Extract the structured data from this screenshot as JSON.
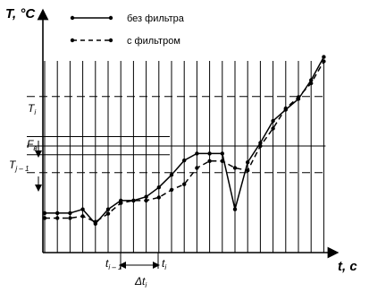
{
  "chart_data": {
    "type": "line",
    "title": "",
    "y_axis_label": "T, °C",
    "x_axis_label": "t, c",
    "legend": [
      {
        "name": "без фильтра",
        "style": "solid"
      },
      {
        "name": "с фильтром",
        "style": "dashed"
      }
    ],
    "annotations": {
      "T_i": "T",
      "T_i_sub": "i",
      "T_i_minus_1": "T",
      "T_i_minus_1_sub": "j – 1",
      "F_b": "F",
      "F_b_sub": "в",
      "t_i_minus_1": "t",
      "t_i_minus_1_sub": "i – 1",
      "t_i": "t",
      "t_i_sub": "i",
      "delta_t": "Δt",
      "delta_t_sub": "i"
    },
    "x": [
      0,
      1,
      2,
      3,
      4,
      5,
      6,
      7,
      8,
      9,
      10,
      11,
      12,
      13,
      14,
      15,
      16,
      17,
      18,
      19,
      20,
      21,
      22
    ],
    "series": [
      {
        "name": "без фильтра",
        "values": [
          6.3,
          6.3,
          6.3,
          6.9,
          4.6,
          6.9,
          8.3,
          8.3,
          8.9,
          10.4,
          12.4,
          14.7,
          15.8,
          15.8,
          15.8,
          6.9,
          14.4,
          17.5,
          21.0,
          22.8,
          24.5,
          27.5,
          31.2
        ]
      },
      {
        "name": "с фильтром",
        "values": [
          5.5,
          5.5,
          5.5,
          5.8,
          4.9,
          6.2,
          7.9,
          8.3,
          8.3,
          8.8,
          10.0,
          10.9,
          13.5,
          14.6,
          14.6,
          13.5,
          13.1,
          17.0,
          19.8,
          23.0,
          24.8,
          27.0,
          30.5
        ]
      }
    ],
    "reference_levels": {
      "T_i": 24.9,
      "T_i_minus_1": 17.0,
      "band_top": 18.5,
      "band_bottom": 15.6
    },
    "ylim": [
      0,
      40
    ],
    "grid": "vertical"
  }
}
